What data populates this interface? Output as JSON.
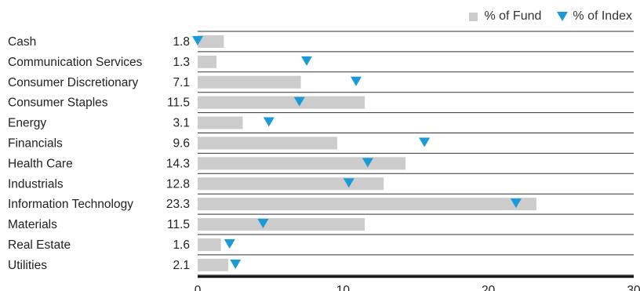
{
  "chart_data": {
    "type": "bar",
    "orientation": "horizontal",
    "categories": [
      "Cash",
      "Communication Services",
      "Consumer Discretionary",
      "Consumer Staples",
      "Energy",
      "Financials",
      "Health Care",
      "Industrials",
      "Information Technology",
      "Materials",
      "Real Estate",
      "Utilities"
    ],
    "series": [
      {
        "name": "% of Fund",
        "values": [
          1.8,
          1.3,
          7.1,
          11.5,
          3.1,
          9.6,
          14.3,
          12.8,
          23.3,
          11.5,
          1.6,
          2.1
        ],
        "color": "#cccccc",
        "marker": "bar"
      },
      {
        "name": "% of Index",
        "values": [
          0.0,
          7.5,
          10.9,
          7.0,
          4.9,
          15.6,
          11.7,
          10.4,
          21.9,
          4.5,
          2.2,
          2.6
        ],
        "color": "#1a9bd7",
        "marker": "triangle-down"
      }
    ],
    "value_labels": [
      "1.8",
      "1.3",
      "7.1",
      "11.5",
      "3.1",
      "9.6",
      "14.3",
      "12.8",
      "23.3",
      "11.5",
      "1.6",
      "2.1"
    ],
    "xlim": [
      0,
      30
    ],
    "xticks": [
      "0",
      "10",
      "20",
      "30"
    ],
    "legend": {
      "position": "top-right",
      "items": [
        "% of Fund",
        "% of Index"
      ]
    },
    "grid": "horizontal separators"
  }
}
